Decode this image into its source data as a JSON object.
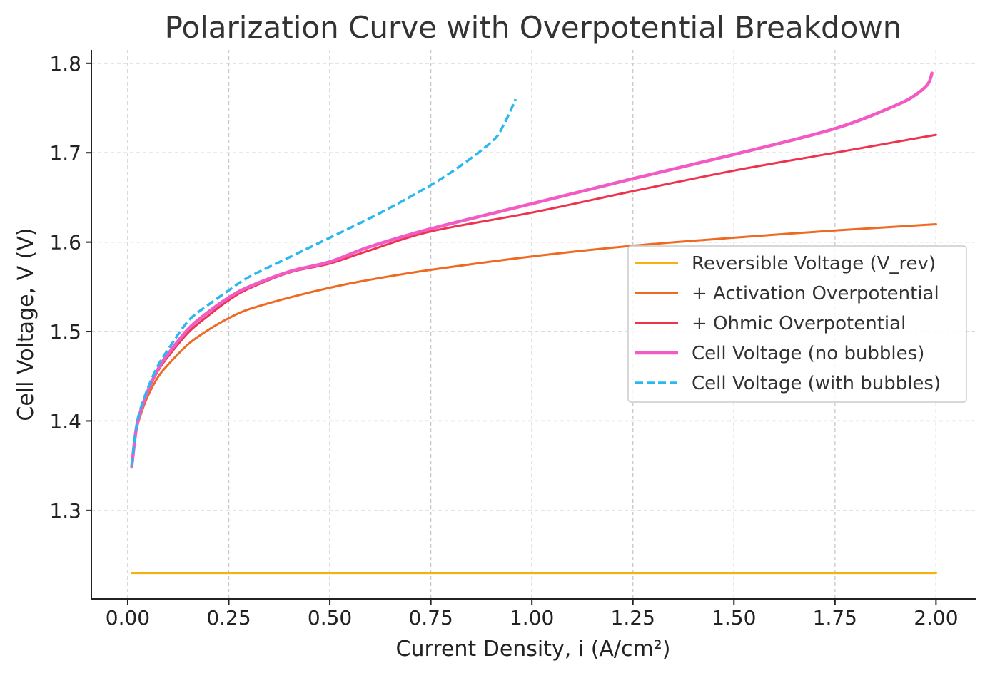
{
  "chart_data": {
    "type": "line",
    "title": "Polarization Curve with Overpotential Breakdown",
    "xlabel": "Current Density, i (A/cm²)",
    "ylabel": "Cell Voltage, V (V)",
    "xlim": [
      -0.09,
      2.1
    ],
    "ylim": [
      1.201,
      1.815
    ],
    "xticks": [
      0.0,
      0.25,
      0.5,
      0.75,
      1.0,
      1.25,
      1.5,
      1.75,
      2.0
    ],
    "xtick_labels": [
      "0.00",
      "0.25",
      "0.50",
      "0.75",
      "1.00",
      "1.25",
      "1.50",
      "1.75",
      "2.00"
    ],
    "yticks": [
      1.3,
      1.4,
      1.5,
      1.6,
      1.7,
      1.8
    ],
    "ytick_labels": [
      "1.3",
      "1.4",
      "1.5",
      "1.6",
      "1.7",
      "1.8"
    ],
    "grid": true,
    "legend_position": "center-right",
    "series": [
      {
        "name": "Reversible Voltage (V_rev)",
        "color": "#f5b111",
        "style": "solid",
        "width": 3,
        "x": [
          0.01,
          2.0
        ],
        "y": [
          1.23,
          1.23
        ]
      },
      {
        "name": "+ Activation Overpotential",
        "color": "#ee6a22",
        "style": "solid",
        "width": 3,
        "x": [
          0.01,
          0.02,
          0.03,
          0.05,
          0.075,
          0.1,
          0.15,
          0.2,
          0.25,
          0.3,
          0.4,
          0.5,
          0.6,
          0.75,
          1.0,
          1.25,
          1.5,
          1.75,
          2.0
        ],
        "y": [
          1.348,
          1.385,
          1.404,
          1.428,
          1.449,
          1.463,
          1.486,
          1.502,
          1.515,
          1.525,
          1.538,
          1.549,
          1.558,
          1.569,
          1.584,
          1.596,
          1.605,
          1.613,
          1.62
        ]
      },
      {
        "name": "+ Ohmic Overpotential",
        "color": "#ee3350",
        "style": "solid",
        "width": 3,
        "x": [
          0.01,
          0.02,
          0.03,
          0.05,
          0.075,
          0.1,
          0.15,
          0.2,
          0.25,
          0.3,
          0.4,
          0.5,
          0.6,
          0.75,
          1.0,
          1.25,
          1.5,
          1.75,
          2.0
        ],
        "y": [
          1.349,
          1.387,
          1.407,
          1.433,
          1.456,
          1.472,
          1.499,
          1.518,
          1.535,
          1.548,
          1.566,
          1.576,
          1.591,
          1.612,
          1.633,
          1.657,
          1.68,
          1.7,
          1.72
        ]
      },
      {
        "name": "Cell Voltage (no bubbles)",
        "color": "#f25ac4",
        "style": "solid",
        "width": 4.5,
        "x": [
          0.01,
          0.02,
          0.03,
          0.05,
          0.075,
          0.1,
          0.15,
          0.2,
          0.25,
          0.3,
          0.4,
          0.5,
          0.6,
          0.75,
          1.0,
          1.25,
          1.5,
          1.75,
          1.9,
          1.95,
          1.98,
          1.99
        ],
        "y": [
          1.349,
          1.388,
          1.408,
          1.434,
          1.458,
          1.475,
          1.503,
          1.522,
          1.538,
          1.55,
          1.567,
          1.578,
          1.595,
          1.615,
          1.643,
          1.671,
          1.698,
          1.727,
          1.753,
          1.765,
          1.777,
          1.789
        ]
      },
      {
        "name": "Cell Voltage (with bubbles)",
        "color": "#2bb8f0",
        "style": "dashed",
        "width": 3.5,
        "x": [
          0.01,
          0.02,
          0.03,
          0.05,
          0.075,
          0.1,
          0.15,
          0.2,
          0.25,
          0.3,
          0.4,
          0.5,
          0.6,
          0.7,
          0.8,
          0.9,
          0.93,
          0.96
        ],
        "y": [
          1.35,
          1.39,
          1.411,
          1.437,
          1.462,
          1.48,
          1.512,
          1.53,
          1.546,
          1.561,
          1.583,
          1.605,
          1.627,
          1.651,
          1.678,
          1.712,
          1.731,
          1.76
        ]
      }
    ]
  }
}
